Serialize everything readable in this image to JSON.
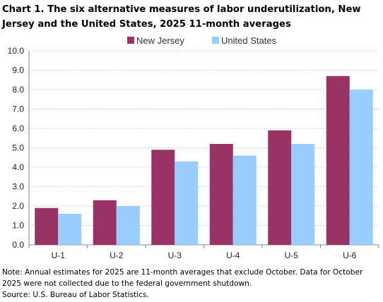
{
  "chart_data": {
    "type": "bar",
    "title": "Chart 1. The six alternative measures of labor underutilization, New Jersey and the United States, 2025 11-month averages",
    "xlabel": "",
    "ylabel": "",
    "categories": [
      "U-1",
      "U-2",
      "U-3",
      "U-4",
      "U-5",
      "U-6"
    ],
    "series": [
      {
        "name": "New Jersey",
        "color": "#993366",
        "values": [
          1.9,
          2.3,
          4.9,
          5.2,
          5.9,
          8.7
        ]
      },
      {
        "name": "United States",
        "color": "#99ccff",
        "values": [
          1.6,
          2.0,
          4.3,
          4.6,
          5.2,
          8.0
        ]
      }
    ],
    "ylim": [
      0,
      10
    ],
    "yticks": [
      "0.0",
      "1.0",
      "2.0",
      "3.0",
      "4.0",
      "5.0",
      "6.0",
      "7.0",
      "8.0",
      "9.0",
      "10.0"
    ],
    "grid": true,
    "legend": "top"
  },
  "notes": {
    "note_line1": "Note: Annual estimates for 2025 are 11-month averages that exclude October. Data for October",
    "note_line2": "2025 were not collected due to the federal government shutdown.",
    "source": "Source: U.S. Bureau of Labor Statistics."
  }
}
